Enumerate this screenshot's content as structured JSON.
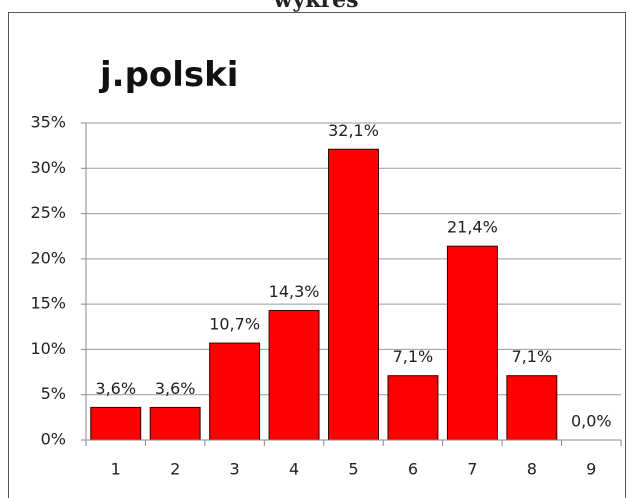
{
  "chart_data": {
    "type": "bar",
    "caption": "wykres",
    "title": "j.polski",
    "categories": [
      "1",
      "2",
      "3",
      "4",
      "5",
      "6",
      "7",
      "8",
      "9"
    ],
    "values": [
      3.6,
      3.6,
      10.7,
      14.3,
      32.1,
      7.1,
      21.4,
      7.1,
      0.0
    ],
    "value_labels": [
      "3,6%",
      "3,6%",
      "10,7%",
      "14,3%",
      "32,1%",
      "7,1%",
      "21,4%",
      "7,1%",
      "0,0%"
    ],
    "color": "#ff0000",
    "ylim": [
      0,
      35
    ],
    "yticks": [
      {
        "value": 0,
        "label": "0%"
      },
      {
        "value": 5,
        "label": "5%"
      },
      {
        "value": 10,
        "label": "10%"
      },
      {
        "value": 15,
        "label": "15%"
      },
      {
        "value": 20,
        "label": "20%"
      },
      {
        "value": 25,
        "label": "25%"
      },
      {
        "value": 30,
        "label": "30%"
      },
      {
        "value": 35,
        "label": "35%"
      }
    ],
    "grid": true
  }
}
